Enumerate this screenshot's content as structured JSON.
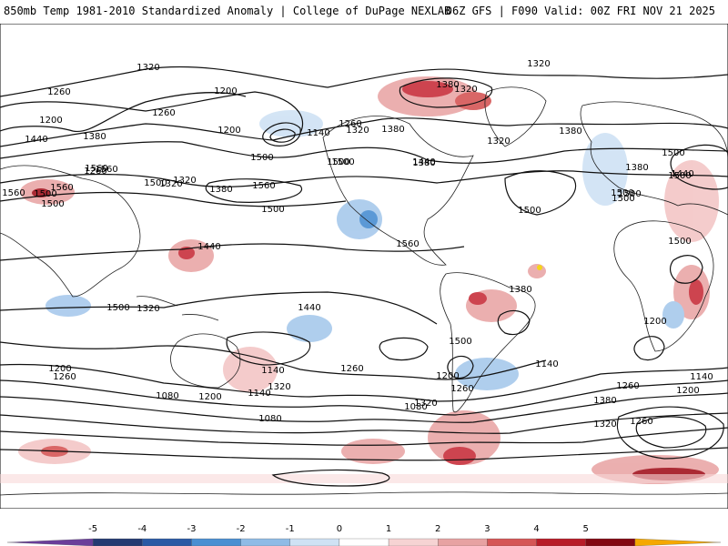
{
  "header": {
    "title": "850mb Temp 1981-2010 Standardized Anomaly | College of DuPage NEXLAB",
    "run_info": "06Z GFS | F090 Valid: 00Z FRI NOV 21 2025"
  },
  "contour_labels": [
    "1320",
    "1260",
    "1200",
    "1200",
    "1260",
    "1380",
    "1440",
    "1380",
    "1320",
    "1320",
    "1200",
    "1260",
    "1140",
    "1320",
    "1380",
    "1320",
    "1380",
    "1440",
    "1560",
    "1380",
    "1500",
    "1560",
    "1560",
    "1500",
    "1500",
    "1560",
    "1560",
    "1500",
    "1500",
    "1500",
    "1500",
    "1500",
    "1500",
    "1500",
    "1500",
    "1380",
    "1500",
    "1500",
    "1440",
    "1320",
    "1380",
    "1260",
    "1320",
    "1440",
    "1560",
    "1500",
    "1380",
    "1500",
    "1320",
    "1440",
    "1500",
    "1200",
    "1140",
    "1320",
    "1260",
    "1140",
    "1200",
    "1200",
    "1260",
    "1200",
    "1140",
    "1080",
    "1080",
    "1260",
    "1320",
    "1380",
    "1140",
    "1200",
    "1260",
    "1080",
    "1320",
    "1260"
  ],
  "colorbar": {
    "ticks": [
      "-5",
      "-4",
      "-3",
      "-2",
      "-1",
      "0",
      "1",
      "2",
      "3",
      "4",
      "5"
    ],
    "colors": [
      "#6a3d9a",
      "#243a72",
      "#2a5aa5",
      "#4a8fd2",
      "#8fbbe6",
      "#cfe2f4",
      "#ffffff",
      "#f6d3d3",
      "#e7a2a2",
      "#d55656",
      "#b81c28",
      "#820812",
      "#f5a800"
    ]
  }
}
